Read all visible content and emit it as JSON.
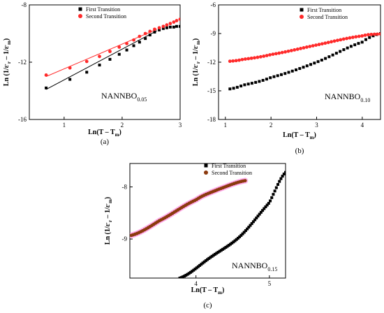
{
  "chart_data": [
    {
      "id": "a",
      "type": "scatter",
      "caption": "(a)",
      "annotation": {
        "main": "NANNBO",
        "sub": "0.05"
      },
      "xlabel": "Ln(T – T_m)",
      "ylabel": "Ln (1/ε'_r – 1/ε'_m)",
      "xlim": [
        0.4,
        3.0
      ],
      "ylim": [
        -16,
        -8
      ],
      "xticks": [
        "1",
        "2",
        "3"
      ],
      "xtick_values": [
        1,
        2,
        3
      ],
      "yticks": [
        "-8",
        "-12",
        "-16"
      ],
      "ytick_values": [
        -8,
        -12,
        -16
      ],
      "legend": "top-left",
      "series": [
        {
          "name": "First Transition",
          "color": "#000000",
          "marker": "square",
          "x": [
            0.69,
            1.1,
            1.39,
            1.61,
            1.79,
            1.95,
            2.08,
            2.2,
            2.3,
            2.4,
            2.48,
            2.56,
            2.64,
            2.71,
            2.77,
            2.83,
            2.89,
            2.94,
            3.0
          ],
          "y": [
            -13.8,
            -13.2,
            -12.7,
            -12.2,
            -11.8,
            -11.45,
            -11.15,
            -10.85,
            -10.6,
            -10.35,
            -10.1,
            -9.9,
            -9.75,
            -9.65,
            -9.6,
            -9.55,
            -9.55,
            -9.5,
            -9.5
          ],
          "fit": {
            "x": [
              0.69,
              2.6
            ],
            "y": [
              -13.9,
              -9.8
            ]
          }
        },
        {
          "name": "Second Transition",
          "color": "#ff2a2a",
          "marker": "circle",
          "x": [
            0.69,
            1.1,
            1.39,
            1.61,
            1.79,
            1.95,
            2.08,
            2.2,
            2.3,
            2.4,
            2.48,
            2.56,
            2.64,
            2.71,
            2.77,
            2.83,
            2.89,
            2.94,
            3.0
          ],
          "y": [
            -12.9,
            -12.4,
            -11.95,
            -11.6,
            -11.25,
            -10.95,
            -10.7,
            -10.45,
            -10.2,
            -10.0,
            -9.85,
            -9.7,
            -9.6,
            -9.5,
            -9.4,
            -9.3,
            -9.2,
            -9.1,
            -9.0
          ],
          "fit": {
            "x": [
              0.69,
              2.6
            ],
            "y": [
              -13.0,
              -9.7
            ]
          }
        }
      ]
    },
    {
      "id": "b",
      "type": "scatter",
      "caption": "(b)",
      "annotation": {
        "main": "NANNBO",
        "sub": "0.10"
      },
      "xlabel": "Ln(T – T_m)",
      "ylabel": "Ln (1/ε'_r – 1/ε'_m)",
      "xlim": [
        0.85,
        4.4
      ],
      "ylim": [
        -18,
        -6
      ],
      "xticks": [
        "1",
        "2",
        "3",
        "4"
      ],
      "xtick_values": [
        1,
        2,
        3,
        4
      ],
      "yticks": [
        "-6",
        "-9",
        "-12",
        "-15",
        "-18"
      ],
      "ytick_values": [
        -6,
        -9,
        -12,
        -15,
        -18
      ],
      "legend": "top-right",
      "series": [
        {
          "name": "First Transition",
          "color": "#000000",
          "marker": "square",
          "curve": {
            "x0": 1.1,
            "x1": 4.4,
            "n": 42,
            "pts": [
              [
                1.1,
                -14.8
              ],
              [
                1.39,
                -14.4
              ],
              [
                2.0,
                -13.6
              ],
              [
                3.0,
                -12.0
              ],
              [
                4.0,
                -9.9
              ],
              [
                4.4,
                -9.0
              ]
            ]
          }
        },
        {
          "name": "Second Transition",
          "color": "#ff2a2a",
          "marker": "circle",
          "curve": {
            "x0": 1.1,
            "x1": 4.4,
            "n": 50,
            "pts": [
              [
                1.1,
                -11.9
              ],
              [
                1.39,
                -11.7
              ],
              [
                2.0,
                -11.2
              ],
              [
                3.0,
                -10.2
              ],
              [
                4.0,
                -9.25
              ],
              [
                4.4,
                -9.05
              ]
            ]
          }
        }
      ]
    },
    {
      "id": "c",
      "type": "scatter",
      "caption": "(c)",
      "annotation": {
        "main": "NANNBO",
        "sub": "0.15"
      },
      "xlabel": "Ln(T – T_m)",
      "ylabel": "Ln (1/ε'_r – 1/ε'_m)",
      "xlim": [
        3.1,
        5.22
      ],
      "ylim": [
        -9.75,
        -7.55
      ],
      "xticks": [
        "4",
        "5"
      ],
      "xtick_values": [
        4,
        5
      ],
      "yticks": [
        "-8",
        "-9"
      ],
      "ytick_values": [
        -8,
        -9
      ],
      "legend": "top-right",
      "series": [
        {
          "name": "First Transition",
          "color": "#000000",
          "marker": "square",
          "curve": {
            "x0": 3.78,
            "x1": 5.22,
            "n": 70,
            "pts": [
              [
                3.78,
                -9.75
              ],
              [
                4.2,
                -9.35
              ],
              [
                4.6,
                -8.95
              ],
              [
                5.0,
                -8.3
              ],
              [
                5.22,
                -7.72
              ]
            ]
          }
        },
        {
          "name": "Second Transition",
          "color": "#8b3a0e",
          "marker": "circle",
          "halo": "#ff9de6",
          "curve": {
            "x0": 3.12,
            "x1": 4.67,
            "n": 62,
            "pts": [
              [
                3.12,
                -8.93
              ],
              [
                3.5,
                -8.65
              ],
              [
                4.0,
                -8.25
              ],
              [
                4.3,
                -8.05
              ],
              [
                4.67,
                -7.88
              ]
            ]
          }
        }
      ]
    }
  ]
}
